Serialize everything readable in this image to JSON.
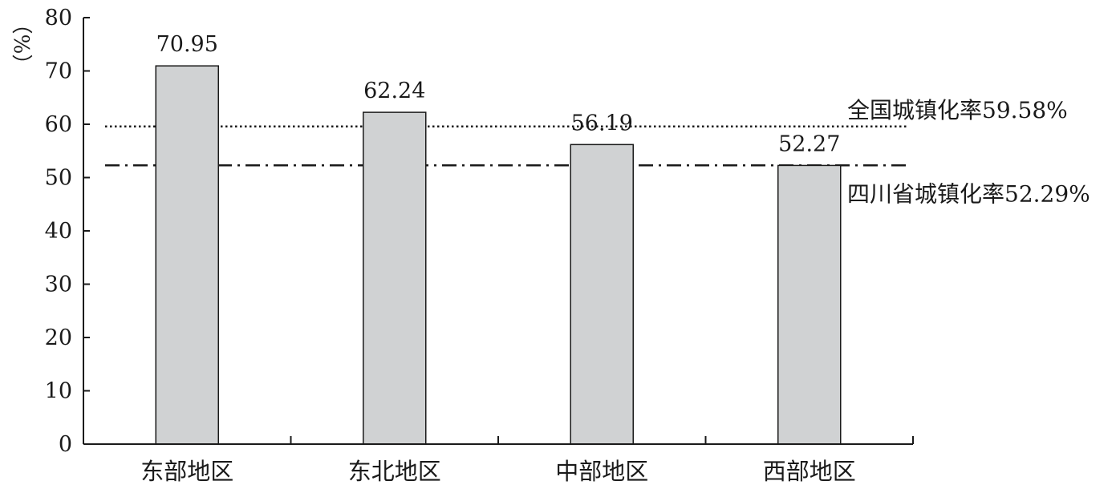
{
  "chart_data": {
    "type": "bar",
    "title": "",
    "xlabel": "",
    "ylabel": "（%）",
    "ylim": [
      0,
      80
    ],
    "yticks": [
      0,
      10,
      20,
      30,
      40,
      50,
      60,
      70,
      80
    ],
    "categories": [
      "东部地区",
      "东北地区",
      "中部地区",
      "西部地区"
    ],
    "values": [
      70.95,
      62.24,
      56.19,
      52.27
    ],
    "value_labels": [
      "70.95",
      "62.24",
      "56.19",
      "52.27"
    ],
    "bar_color": "#d0d2d3",
    "grid": false,
    "reference_lines": [
      {
        "label": "全国城镇化率59.58%",
        "value": 59.58,
        "style": "dotted"
      },
      {
        "label": "四川省城镇化率52.29%",
        "value": 52.29,
        "style": "dashdot"
      }
    ]
  }
}
